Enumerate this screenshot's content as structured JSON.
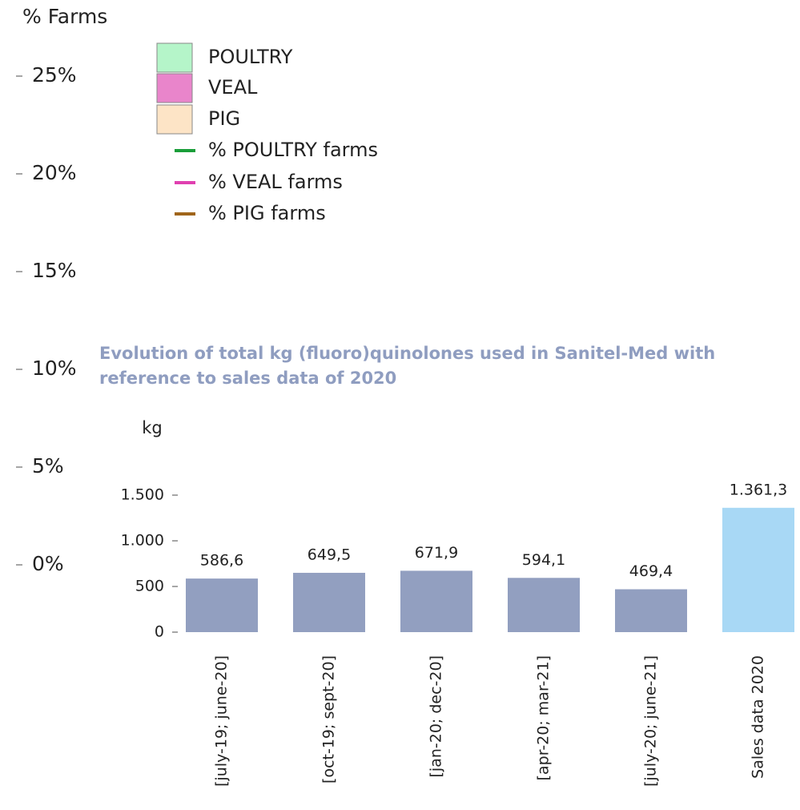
{
  "chart_data": [
    {
      "type": "line",
      "ylabel": "% Farms",
      "ylim": [
        0,
        25
      ],
      "yticks": [
        {
          "value": 0,
          "label": "0%"
        },
        {
          "value": 5,
          "label": "5%"
        },
        {
          "value": 10,
          "label": "10%"
        },
        {
          "value": 15,
          "label": "15%"
        },
        {
          "value": 20,
          "label": "20%"
        },
        {
          "value": 25,
          "label": "25%"
        }
      ],
      "series": [
        {
          "name": "POULTRY",
          "color": "#b5f5c9",
          "type": "bar"
        },
        {
          "name": "VEAL",
          "color": "#e985cb",
          "type": "bar"
        },
        {
          "name": "PIG",
          "color": "#fde4c6",
          "type": "bar"
        },
        {
          "name": "% POULTRY farms",
          "color": "#1a9e3a",
          "type": "line"
        },
        {
          "name": "% VEAL farms",
          "color": "#e040b0",
          "type": "line"
        },
        {
          "name": "% PIG farms",
          "color": "#a0651a",
          "type": "line"
        }
      ]
    },
    {
      "type": "bar",
      "title": "Evolution of total kg (fluoro)quinolones used in Sanitel-Med with reference to sales data of 2020",
      "ylabel": "kg",
      "ylim": [
        0,
        1500
      ],
      "yticks": [
        0,
        500,
        {
          "value": 1000,
          "label": "1.000"
        },
        {
          "value": 1500,
          "label": "1.500"
        }
      ],
      "categories": [
        "[july-19; june-20]",
        "[oct-19; sept-20]",
        "[jan-20; dec-20]",
        "[apr-20; mar-21]",
        "[july-20; june-21]",
        "Sales data 2020"
      ],
      "values": [
        586.6,
        649.5,
        671.9,
        594.1,
        469.4,
        1361.3
      ],
      "value_labels": [
        "586,6",
        "649,5",
        "671,9",
        "594,1",
        "469,4",
        "1.361,3"
      ],
      "colors": [
        "#929fc0",
        "#929fc0",
        "#929fc0",
        "#929fc0",
        "#929fc0",
        "#a8d8f5"
      ]
    }
  ]
}
